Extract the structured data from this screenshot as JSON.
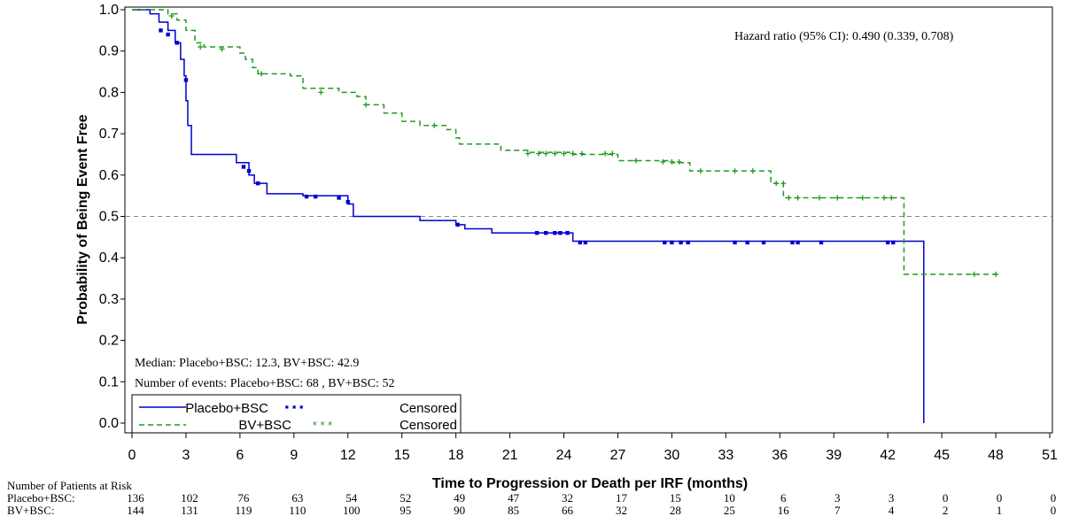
{
  "chart_data": {
    "type": "line",
    "subtype": "kaplan-meier",
    "ylabel": "Probability of Being Event Free",
    "xlabel": "Time to Progression or Death per IRF (months)",
    "xlim": [
      0,
      51
    ],
    "ylim": [
      0,
      1
    ],
    "x_ticks": [
      0,
      3,
      6,
      9,
      12,
      15,
      18,
      21,
      24,
      27,
      30,
      33,
      36,
      39,
      42,
      45,
      48,
      51
    ],
    "y_ticks": [
      0.0,
      0.1,
      0.2,
      0.3,
      0.4,
      0.5,
      0.6,
      0.7,
      0.8,
      0.9,
      1.0
    ],
    "reference_line_y": 0.5,
    "annotations": {
      "hazard_ratio": "Hazard ratio (95% CI): 0.490 (0.339, 0.708)",
      "median": "Median: Placebo+BSC: 12.3, BV+BSC: 42.9",
      "events": "Number of events: Placebo+BSC: 68 , BV+BSC: 52"
    },
    "legend": {
      "placement": "bottom-left",
      "entries": [
        {
          "label": "Placebo+BSC",
          "censored_label": "Censored"
        },
        {
          "label": "BV+BSC",
          "censored_label": "Censored"
        }
      ]
    },
    "series": [
      {
        "name": "Placebo+BSC",
        "color": "#0000cc",
        "line_style": "solid",
        "steps": [
          [
            0,
            1.0
          ],
          [
            1.0,
            0.99
          ],
          [
            1.5,
            0.97
          ],
          [
            2.0,
            0.95
          ],
          [
            2.4,
            0.92
          ],
          [
            2.7,
            0.88
          ],
          [
            2.9,
            0.84
          ],
          [
            3.0,
            0.78
          ],
          [
            3.1,
            0.72
          ],
          [
            3.3,
            0.65
          ],
          [
            5.8,
            0.63
          ],
          [
            6.5,
            0.6
          ],
          [
            6.8,
            0.58
          ],
          [
            7.5,
            0.555
          ],
          [
            9.5,
            0.55
          ],
          [
            12.0,
            0.53
          ],
          [
            12.3,
            0.5
          ],
          [
            16.0,
            0.49
          ],
          [
            18.0,
            0.48
          ],
          [
            18.5,
            0.47
          ],
          [
            20.0,
            0.46
          ],
          [
            24.5,
            0.44
          ],
          [
            44.0,
            0.44
          ],
          [
            44.0,
            0.0
          ]
        ],
        "censored": [
          [
            1.6,
            0.95
          ],
          [
            2.0,
            0.94
          ],
          [
            2.5,
            0.92
          ],
          [
            3.0,
            0.83
          ],
          [
            6.2,
            0.62
          ],
          [
            6.5,
            0.61
          ],
          [
            7.0,
            0.58
          ],
          [
            9.7,
            0.548
          ],
          [
            10.2,
            0.548
          ],
          [
            11.5,
            0.545
          ],
          [
            12.0,
            0.535
          ],
          [
            18.1,
            0.48
          ],
          [
            22.5,
            0.46
          ],
          [
            23.0,
            0.46
          ],
          [
            23.5,
            0.46
          ],
          [
            23.8,
            0.46
          ],
          [
            24.2,
            0.46
          ],
          [
            24.9,
            0.437
          ],
          [
            25.2,
            0.437
          ],
          [
            29.6,
            0.437
          ],
          [
            30.0,
            0.437
          ],
          [
            30.5,
            0.437
          ],
          [
            30.9,
            0.437
          ],
          [
            33.5,
            0.437
          ],
          [
            34.2,
            0.437
          ],
          [
            35.1,
            0.437
          ],
          [
            36.7,
            0.437
          ],
          [
            37.0,
            0.437
          ],
          [
            38.3,
            0.437
          ],
          [
            42.0,
            0.437
          ],
          [
            42.3,
            0.437
          ]
        ]
      },
      {
        "name": "BV+BSC",
        "color": "#229922",
        "line_style": "dashed",
        "steps": [
          [
            0,
            1.0
          ],
          [
            2.0,
            0.99
          ],
          [
            2.5,
            0.975
          ],
          [
            3.0,
            0.95
          ],
          [
            3.5,
            0.92
          ],
          [
            4.0,
            0.91
          ],
          [
            6.0,
            0.895
          ],
          [
            6.3,
            0.88
          ],
          [
            6.7,
            0.86
          ],
          [
            7.0,
            0.845
          ],
          [
            8.8,
            0.84
          ],
          [
            9.5,
            0.81
          ],
          [
            11.5,
            0.8
          ],
          [
            12.5,
            0.79
          ],
          [
            13.0,
            0.77
          ],
          [
            14.0,
            0.75
          ],
          [
            15.0,
            0.73
          ],
          [
            16.0,
            0.72
          ],
          [
            17.5,
            0.71
          ],
          [
            18.0,
            0.69
          ],
          [
            18.2,
            0.675
          ],
          [
            20.5,
            0.66
          ],
          [
            22.0,
            0.655
          ],
          [
            24.5,
            0.65
          ],
          [
            27.0,
            0.635
          ],
          [
            30.0,
            0.63
          ],
          [
            31.0,
            0.61
          ],
          [
            35.5,
            0.58
          ],
          [
            36.2,
            0.545
          ],
          [
            42.9,
            0.545
          ],
          [
            42.9,
            0.36
          ],
          [
            48.2,
            0.36
          ]
        ],
        "censored": [
          [
            2.2,
            0.985
          ],
          [
            3.8,
            0.91
          ],
          [
            5.0,
            0.905
          ],
          [
            7.2,
            0.845
          ],
          [
            10.5,
            0.8
          ],
          [
            13.0,
            0.77
          ],
          [
            16.8,
            0.72
          ],
          [
            22.0,
            0.652
          ],
          [
            22.6,
            0.652
          ],
          [
            23.0,
            0.652
          ],
          [
            23.5,
            0.652
          ],
          [
            24.0,
            0.652
          ],
          [
            24.5,
            0.652
          ],
          [
            25.0,
            0.652
          ],
          [
            26.3,
            0.652
          ],
          [
            26.7,
            0.652
          ],
          [
            28.0,
            0.635
          ],
          [
            29.5,
            0.632
          ],
          [
            30.0,
            0.632
          ],
          [
            30.4,
            0.632
          ],
          [
            31.6,
            0.61
          ],
          [
            33.5,
            0.61
          ],
          [
            34.5,
            0.61
          ],
          [
            35.8,
            0.58
          ],
          [
            36.2,
            0.58
          ],
          [
            36.5,
            0.545
          ],
          [
            37.0,
            0.545
          ],
          [
            38.2,
            0.545
          ],
          [
            39.2,
            0.545
          ],
          [
            40.6,
            0.545
          ],
          [
            41.8,
            0.545
          ],
          [
            42.2,
            0.545
          ],
          [
            46.8,
            0.36
          ],
          [
            48.0,
            0.36
          ]
        ]
      }
    ]
  },
  "risk_table": {
    "title": "Number of Patients at Risk",
    "rows": [
      {
        "label": "Placebo+BSC:",
        "values": [
          136,
          102,
          76,
          63,
          54,
          52,
          49,
          47,
          32,
          17,
          15,
          10,
          6,
          3,
          3,
          0,
          0,
          0
        ]
      },
      {
        "label": "BV+BSC:",
        "values": [
          144,
          131,
          119,
          110,
          100,
          95,
          90,
          85,
          66,
          32,
          28,
          25,
          16,
          7,
          4,
          2,
          1,
          0
        ]
      }
    ]
  }
}
